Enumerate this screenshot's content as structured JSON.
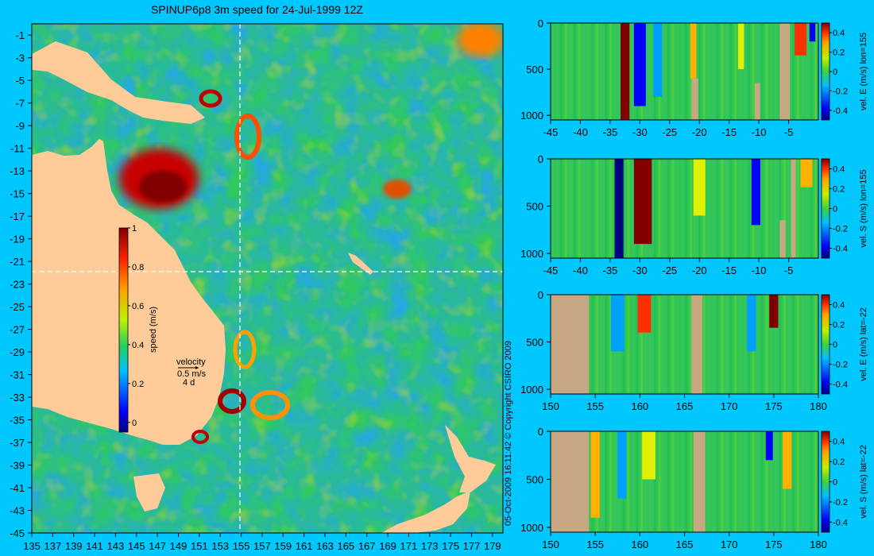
{
  "map": {
    "title": "SPINUP6p8 3m speed for 24-Jul-1999 12Z",
    "x_ticks": [
      "135",
      "137",
      "139",
      "141",
      "143",
      "145",
      "147",
      "149",
      "151",
      "153",
      "155",
      "157",
      "159",
      "161",
      "163",
      "165",
      "167",
      "169",
      "171",
      "173",
      "175",
      "177",
      "179"
    ],
    "y_ticks": [
      "-1",
      "-3",
      "-5",
      "-7",
      "-9",
      "-11",
      "-13",
      "-15",
      "-17",
      "-19",
      "-21",
      "-23",
      "-25",
      "-27",
      "-29",
      "-31",
      "-33",
      "-35",
      "-37",
      "-39",
      "-41",
      "-43",
      "-45"
    ],
    "colorbar_label": "speed (m/s)",
    "colorbar_ticks": [
      "1",
      "0.8",
      "0.6",
      "0.4",
      "0.2",
      "0"
    ],
    "velocity_legend": {
      "label": "velocity",
      "speed": "0.5 m/s",
      "days": "4 d"
    },
    "section_lon": 155,
    "section_lat": -22
  },
  "copyright": "05-Oct-2009 16:11:42    © Copyright CSIRO 2009",
  "colors": {
    "background": "#00c8ff",
    "land": "#ffcc99",
    "section_land": "#c8a882",
    "section_line": "#ffffff"
  },
  "chart_data": [
    {
      "type": "heatmap",
      "name": "map",
      "title": "SPINUP6p8 3m speed for 24-Jul-1999 12Z",
      "x_range": [
        135,
        180
      ],
      "y_range": [
        -45,
        0
      ],
      "colorbar_range": [
        0,
        1
      ],
      "colorbar_label": "speed (m/s)"
    },
    {
      "type": "heatmap",
      "panel": "sec1",
      "label": "vel. E (m/s) lon=155",
      "x_ticks": [
        "-45",
        "-40",
        "-35",
        "-30",
        "-25",
        "-20",
        "-15",
        "-10",
        "-5"
      ],
      "y_ticks": [
        "0",
        "500",
        "1000"
      ],
      "colorbar_ticks": [
        "0.4",
        "0.2",
        "0",
        "-0.2",
        "-0.4"
      ],
      "x_range": [
        -45,
        0
      ],
      "y_range": [
        0,
        1050
      ],
      "land": [
        [
          -21.3,
          -20.2,
          600,
          1050
        ],
        [
          -10.7,
          -9.8,
          650,
          1050
        ],
        [
          -6.5,
          -4.8,
          0,
          1050
        ]
      ],
      "features": [
        {
          "x": -32.5,
          "w": 1.5,
          "v": 0.5,
          "depth": 1050
        },
        {
          "x": -30,
          "w": 2,
          "v": -0.35,
          "depth": 900
        },
        {
          "x": -27,
          "w": 1.5,
          "v": -0.2,
          "depth": 800
        },
        {
          "x": -21,
          "w": 1,
          "v": 0.3,
          "depth": 600
        },
        {
          "x": -13,
          "w": 1,
          "v": 0.25,
          "depth": 500
        },
        {
          "x": -3,
          "w": 2,
          "v": 0.45,
          "depth": 350
        },
        {
          "x": -1,
          "w": 1,
          "v": -0.4,
          "depth": 200
        }
      ]
    },
    {
      "type": "heatmap",
      "panel": "sec2",
      "label": "vel. S (m/s) lon=155",
      "x_ticks": [
        "-45",
        "-40",
        "-35",
        "-30",
        "-25",
        "-20",
        "-15",
        "-10",
        "-5"
      ],
      "y_ticks": [
        "0",
        "500",
        "1000"
      ],
      "colorbar_ticks": [
        "0.4",
        "0.2",
        "0",
        "-0.2",
        "-0.4"
      ],
      "x_range": [
        -45,
        0
      ],
      "y_range": [
        0,
        1050
      ],
      "land": [
        [
          -6.5,
          -5.5,
          650,
          1050
        ],
        [
          -4.6,
          -3.8,
          0,
          1050
        ]
      ],
      "features": [
        {
          "x": -33.5,
          "w": 1.5,
          "v": -0.45,
          "depth": 1050
        },
        {
          "x": -29.5,
          "w": 3,
          "v": 0.5,
          "depth": 900
        },
        {
          "x": -20,
          "w": 2,
          "v": 0.25,
          "depth": 600
        },
        {
          "x": -10.5,
          "w": 1.5,
          "v": -0.4,
          "depth": 700
        },
        {
          "x": -2,
          "w": 2,
          "v": 0.3,
          "depth": 300
        }
      ]
    },
    {
      "type": "heatmap",
      "panel": "sec3",
      "label": "vel. E (m/s) lat=-22",
      "x_ticks": [
        "150",
        "155",
        "160",
        "165",
        "170",
        "175",
        "180"
      ],
      "y_ticks": [
        "0",
        "500",
        "1000"
      ],
      "colorbar_ticks": [
        "0.4",
        "0.2",
        "0",
        "-0.2",
        "-0.4"
      ],
      "x_range": [
        150,
        180
      ],
      "y_range": [
        0,
        1050
      ],
      "land": [
        [
          150,
          154.3,
          0,
          1050
        ],
        [
          165.8,
          167,
          0,
          1050
        ]
      ],
      "features": [
        {
          "x": 157.5,
          "w": 1.5,
          "v": -0.25,
          "depth": 600
        },
        {
          "x": 160.5,
          "w": 1.5,
          "v": 0.45,
          "depth": 400
        },
        {
          "x": 172.5,
          "w": 1,
          "v": -0.3,
          "depth": 600
        },
        {
          "x": 175,
          "w": 1,
          "v": 0.5,
          "depth": 350
        }
      ]
    },
    {
      "type": "heatmap",
      "panel": "sec4",
      "label": "vel. S (m/s) lat=-22",
      "x_ticks": [
        "150",
        "155",
        "160",
        "165",
        "170",
        "175",
        "180"
      ],
      "y_ticks": [
        "0",
        "500",
        "1000"
      ],
      "colorbar_ticks": [
        "0.4",
        "0.2",
        "0",
        "-0.2",
        "-0.4"
      ],
      "x_range": [
        150,
        180
      ],
      "y_range": [
        0,
        1050
      ],
      "land": [
        [
          150,
          154.3,
          0,
          1050
        ],
        [
          166,
          167.3,
          0,
          1050
        ]
      ],
      "features": [
        {
          "x": 155,
          "w": 1,
          "v": 0.3,
          "depth": 900
        },
        {
          "x": 158,
          "w": 1,
          "v": -0.3,
          "depth": 700
        },
        {
          "x": 161,
          "w": 1.5,
          "v": 0.2,
          "depth": 500
        },
        {
          "x": 174.5,
          "w": 0.8,
          "v": -0.4,
          "depth": 300
        },
        {
          "x": 176.5,
          "w": 1,
          "v": 0.35,
          "depth": 600
        }
      ]
    }
  ]
}
